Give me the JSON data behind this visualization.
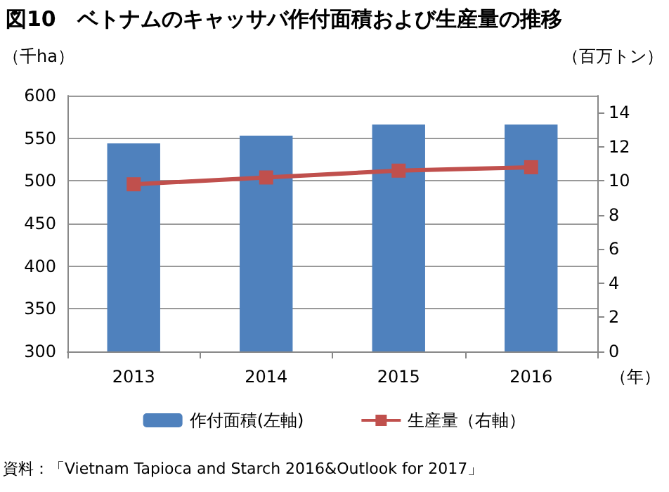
{
  "chart_data": {
    "type": "bar",
    "title": "図10　ベトナムのキャッサバ作付面積および生産量の推移",
    "ylabel": "（千ha）",
    "y2label": "（百万トン）",
    "xlabel": "（年）",
    "categories": [
      "2013",
      "2014",
      "2015",
      "2016"
    ],
    "series": [
      {
        "name": "作付面積(左軸)",
        "color": "#4f81bd",
        "values": [
          544,
          553,
          566,
          566
        ]
      },
      {
        "name": "生産量（右軸）",
        "type": "line",
        "axis": "y2",
        "color": "#c0504d",
        "marker": "square",
        "values": [
          9.8,
          10.2,
          10.6,
          10.8
        ]
      }
    ],
    "ylim": [
      300,
      600
    ],
    "yticks": [
      300,
      350,
      400,
      450,
      500,
      550,
      600
    ],
    "y2lim": [
      0,
      15
    ],
    "y2ticks": [
      0,
      2,
      4,
      6,
      8,
      10,
      12,
      14
    ],
    "grid": "y",
    "legend": "bottom",
    "annotations": [
      "資料：「Vietnam Tapioca and Starch 2016&Outlook for 2017」"
    ]
  }
}
